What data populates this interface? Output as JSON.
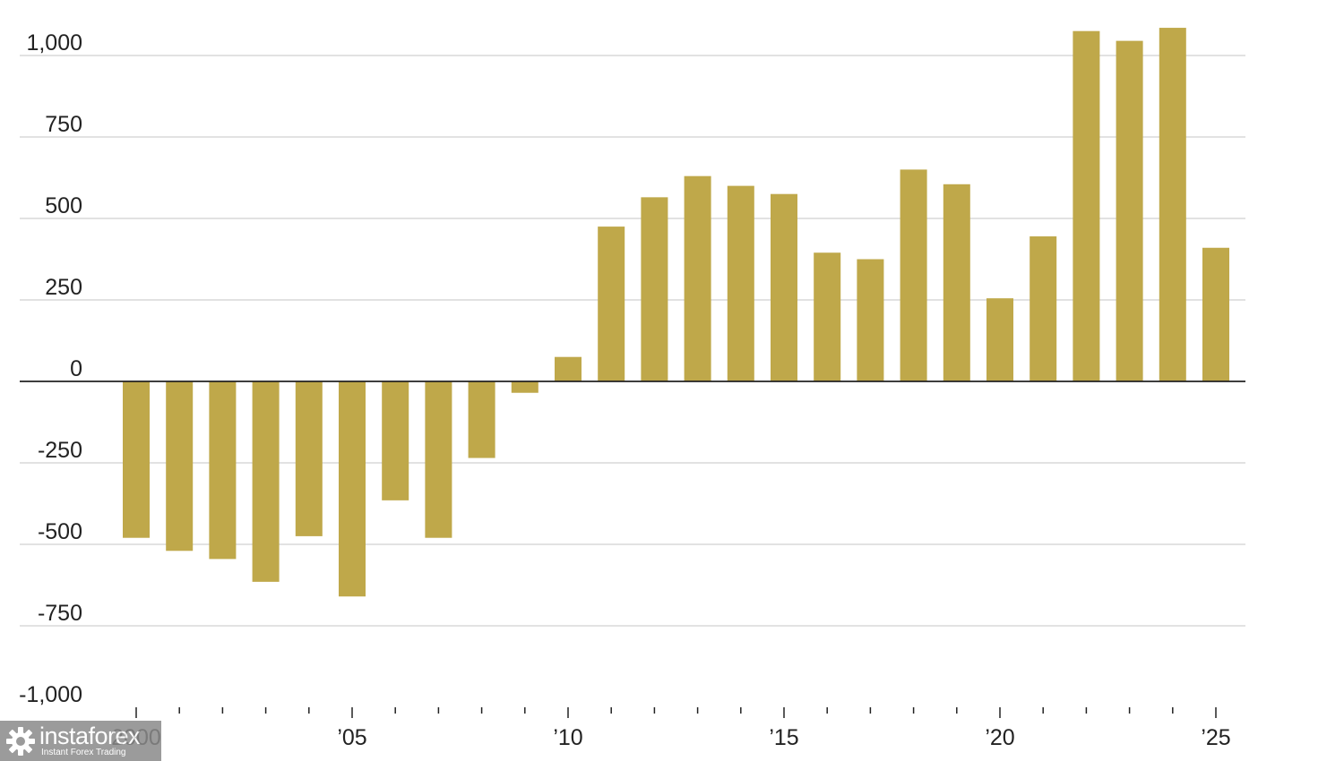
{
  "chart_data": {
    "type": "bar",
    "title": "",
    "xlabel": "",
    "ylabel": "",
    "categories": [
      "2000",
      "2001",
      "2002",
      "2003",
      "2004",
      "2005",
      "2006",
      "2007",
      "2008",
      "2009",
      "2010",
      "2011",
      "2012",
      "2013",
      "2014",
      "2015",
      "2016",
      "2017",
      "2018",
      "2019",
      "2020",
      "2021",
      "2022",
      "2023",
      "2024",
      "2025"
    ],
    "values": [
      -480,
      -520,
      -545,
      -615,
      -475,
      -660,
      -365,
      -480,
      -235,
      -35,
      75,
      475,
      565,
      630,
      600,
      575,
      395,
      375,
      650,
      605,
      255,
      445,
      1075,
      1045,
      1085,
      410
    ],
    "ylim": [
      -1000,
      1000
    ],
    "yticks": [
      1000,
      750,
      500,
      250,
      0,
      -250,
      -500,
      -750,
      -1000
    ],
    "ytick_labels": [
      "1,000",
      "750",
      "500",
      "250",
      "0",
      "-250",
      "-500",
      "-750",
      "-1,000"
    ],
    "xtick_labels": [
      {
        "year": "2000",
        "label": "2000"
      },
      {
        "year": "2005",
        "label": "’05"
      },
      {
        "year": "2010",
        "label": "’10"
      },
      {
        "year": "2015",
        "label": "’15"
      },
      {
        "year": "2020",
        "label": "’20"
      },
      {
        "year": "2025",
        "label": "’25"
      }
    ],
    "bar_color": "#bfa84a",
    "grid": true,
    "legend": "none"
  },
  "watermark": {
    "name": "instaforex",
    "tagline": "Instant Forex Trading",
    "icon": "gear-logo-icon"
  }
}
